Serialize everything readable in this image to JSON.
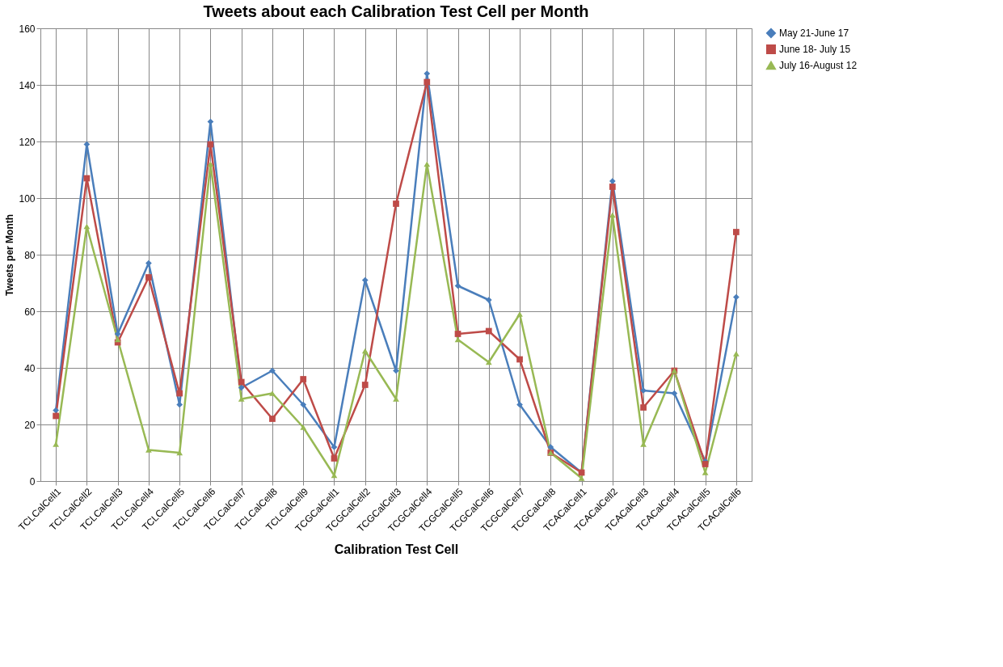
{
  "chart_data": {
    "type": "line",
    "title": "Tweets about each Calibration Test Cell per Month",
    "xlabel": "Calibration Test Cell",
    "ylabel": "Tweets per Month",
    "categories": [
      "TCLCalCell1",
      "TCLCalCell2",
      "TCLCalCell3",
      "TCLCalCell4",
      "TCLCalCell5",
      "TCLCalCell6",
      "TCLCalCell7",
      "TCLCalCell8",
      "TCLCalCell9",
      "TCGCalCell1",
      "TCGCalCell2",
      "TCGCalCell3",
      "TCGCalCell4",
      "TCGCalCell5",
      "TCGCalCell6",
      "TCGCalCell7",
      "TCGCalCell8",
      "TCACalCell1",
      "TCACalCell2",
      "TCACalCell3",
      "TCACalCell4",
      "TCACalCell5",
      "TCACalCell6"
    ],
    "series": [
      {
        "name": "May 21-June 17",
        "color": "#4a7ebb",
        "marker": "diamond",
        "values": [
          25,
          119,
          52,
          77,
          27,
          127,
          33,
          39,
          27,
          12,
          71,
          39,
          144,
          69,
          64,
          27,
          12,
          3,
          106,
          32,
          31,
          7,
          65
        ]
      },
      {
        "name": "June 18- July 15",
        "color": "#be4b48",
        "marker": "square",
        "values": [
          23,
          107,
          49,
          72,
          31,
          119,
          35,
          22,
          36,
          8,
          34,
          98,
          141,
          52,
          53,
          43,
          10,
          3,
          104,
          26,
          39,
          6,
          88
        ]
      },
      {
        "name": "July 16-August 12",
        "color": "#98b954",
        "marker": "triangle",
        "values": [
          13,
          90,
          50,
          11,
          10,
          112,
          29,
          31,
          19,
          2,
          46,
          29,
          112,
          50,
          42,
          59,
          10,
          1,
          94,
          13,
          39,
          3,
          45
        ]
      }
    ],
    "ylim": [
      0,
      160
    ],
    "yticks": [
      0,
      20,
      40,
      60,
      80,
      100,
      120,
      140,
      160
    ],
    "grid": true,
    "legend": "right",
    "line_style": "solid"
  }
}
